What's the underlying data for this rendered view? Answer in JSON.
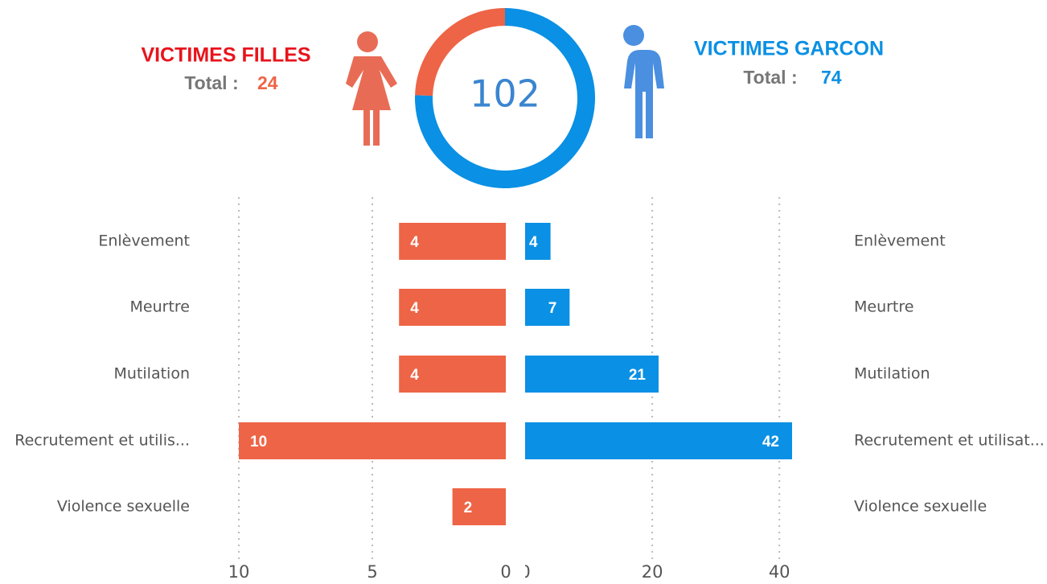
{
  "chart_data": [
    {
      "type": "donut",
      "categories": [
        "VICTIMES FILLES",
        "VICTIMES GARCON"
      ],
      "values": [
        24,
        74
      ],
      "colors": [
        "#ee6446",
        "#0a90e4"
      ],
      "title_colors": [
        "#e8141c",
        "#0a90e4"
      ],
      "total_label": "Total :",
      "total": "102"
    },
    {
      "type": "hbar",
      "categories": [
        "Enlèvement",
        "Meurtre",
        "Mutilation",
        "Recrutement et utilis...",
        "Violence sexuelle"
      ],
      "values": [
        4,
        4,
        4,
        10,
        2
      ],
      "color": "#ee6446",
      "xlim": [
        0,
        10
      ],
      "xticks": [
        0,
        5,
        10
      ],
      "reversed": true,
      "grid": true
    },
    {
      "type": "hbar",
      "categories": [
        "Enlèvement",
        "Meurtre",
        "Mutilation",
        "Recrutement et utilisat...",
        "Violence sexuelle"
      ],
      "values": [
        4,
        7,
        21,
        42,
        null
      ],
      "color": "#0a90e4",
      "xlim": [
        0,
        42
      ],
      "xticks": [
        0,
        20,
        40
      ],
      "reversed": false,
      "grid": true
    }
  ]
}
